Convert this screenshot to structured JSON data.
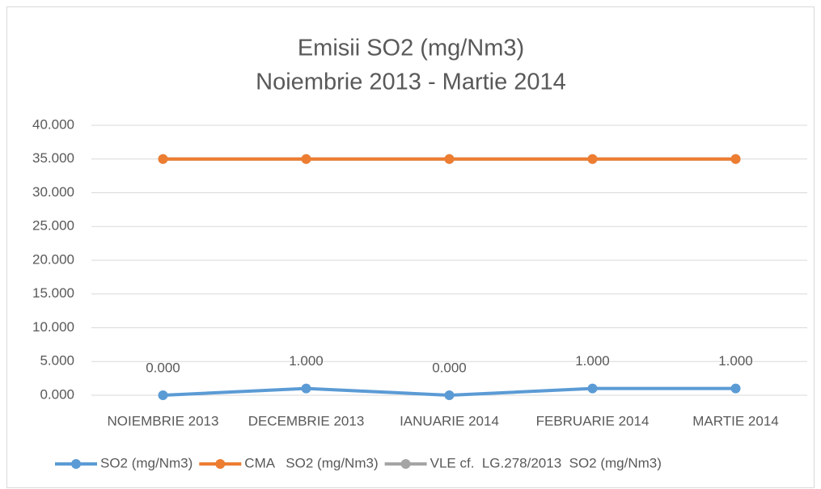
{
  "chart_data": {
    "type": "line",
    "title": "Emisii SO2 (mg/Nm3)",
    "subtitle": "Noiembrie 2013 - Martie 2014",
    "categories": [
      "NOIEMBRIE 2013",
      "DECEMBRIE 2013",
      "IANUARIE 2014",
      "FEBRUARIE 2014",
      "MARTIE 2014"
    ],
    "series": [
      {
        "name": "SO2 (mg/Nm3)",
        "color": "#5b9bd5",
        "values": [
          0,
          1,
          0,
          1,
          1
        ],
        "value_labels": [
          "0.000",
          "1.000",
          "0.000",
          "1.000",
          "1.000"
        ]
      },
      {
        "name": "CMA   SO2 (mg/Nm3)",
        "color": "#ed7d31",
        "values": [
          35,
          35,
          35,
          35,
          35
        ]
      },
      {
        "name": "VLE cf.  LG.278/2013  SO2 (mg/Nm3)",
        "color": "#a5a5a5",
        "values": [
          35,
          35,
          35,
          35,
          35
        ]
      }
    ],
    "ylim": [
      0,
      40
    ],
    "yticks": [
      {
        "value": 0,
        "label": "0.000"
      },
      {
        "value": 5,
        "label": "5.000"
      },
      {
        "value": 10,
        "label": "10.000"
      },
      {
        "value": 15,
        "label": "15.000"
      },
      {
        "value": 20,
        "label": "20.000"
      },
      {
        "value": 25,
        "label": "25.000"
      },
      {
        "value": 30,
        "label": "30.000"
      },
      {
        "value": 35,
        "label": "35.000"
      },
      {
        "value": 40,
        "label": "40.000"
      }
    ],
    "grid": true,
    "legend": "bottom"
  }
}
